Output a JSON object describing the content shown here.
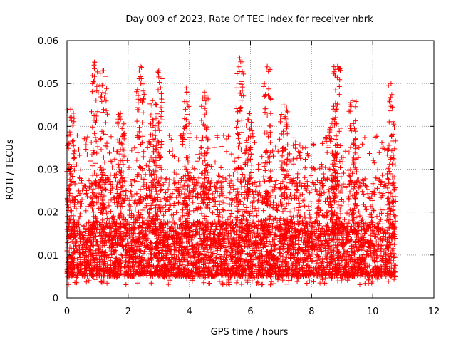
{
  "chart_data": {
    "type": "scatter",
    "title": "Day 009 of 2023, Rate Of TEC Index for receiver nbrk",
    "xlabel": "GPS time / hours",
    "ylabel": "ROTI / TECUs",
    "xlim": [
      0,
      12
    ],
    "ylim": [
      0,
      0.06
    ],
    "x_ticks": [
      "0",
      "2",
      "4",
      "6",
      "8",
      "10",
      "12"
    ],
    "y_ticks": [
      "0",
      "0.01",
      "0.02",
      "0.03",
      "0.04",
      "0.05",
      "0.06"
    ],
    "grid": true,
    "marker": "+",
    "marker_color": "#ff0000",
    "series": [
      {
        "name": "ROTI",
        "x_start": 0.0,
        "x_end": 10.75,
        "typical_range": [
          0.005,
          0.02
        ],
        "peaks": [
          {
            "x": 0.12,
            "y": 0.044
          },
          {
            "x": 0.9,
            "y": 0.055
          },
          {
            "x": 1.2,
            "y": 0.053
          },
          {
            "x": 1.75,
            "y": 0.043
          },
          {
            "x": 2.4,
            "y": 0.054
          },
          {
            "x": 2.8,
            "y": 0.046
          },
          {
            "x": 3.0,
            "y": 0.053
          },
          {
            "x": 3.9,
            "y": 0.049
          },
          {
            "x": 4.5,
            "y": 0.048
          },
          {
            "x": 5.65,
            "y": 0.056
          },
          {
            "x": 5.95,
            "y": 0.043
          },
          {
            "x": 6.55,
            "y": 0.054
          },
          {
            "x": 7.1,
            "y": 0.045
          },
          {
            "x": 8.7,
            "y": 0.044
          },
          {
            "x": 8.85,
            "y": 0.054
          },
          {
            "x": 9.35,
            "y": 0.046
          },
          {
            "x": 10.6,
            "y": 0.05
          }
        ]
      }
    ]
  }
}
